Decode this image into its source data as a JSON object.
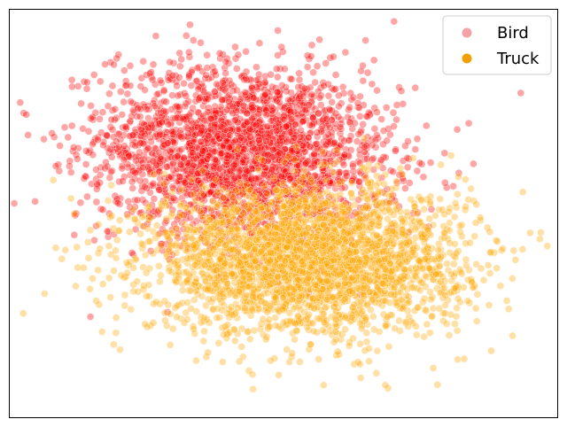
{
  "chart_data": {
    "type": "scatter",
    "title": "",
    "xlabel": "",
    "ylabel": "",
    "xlim": [
      -4.0,
      4.0
    ],
    "ylim": [
      -4.0,
      4.0
    ],
    "axes_ticks": "none",
    "grid": false,
    "legend_position": "top-right",
    "point_alpha": 0.35,
    "series": [
      {
        "name": "Bird",
        "color": "#ff0000",
        "legend_color": "#f4a1a8",
        "point_count": 2600,
        "distribution": {
          "kind": "gaussian_cloud",
          "center": [
            -0.6,
            1.2
          ],
          "std": [
            1.05,
            0.85
          ],
          "rotation_deg": -10
        }
      },
      {
        "name": "Truck",
        "color": "#ffa500",
        "legend_color": "#f0a000",
        "point_count": 3000,
        "distribution": {
          "kind": "gaussian_cloud",
          "center": [
            0.35,
            -0.9
          ],
          "std": [
            1.15,
            0.72
          ],
          "rotation_deg": 0
        }
      }
    ]
  }
}
